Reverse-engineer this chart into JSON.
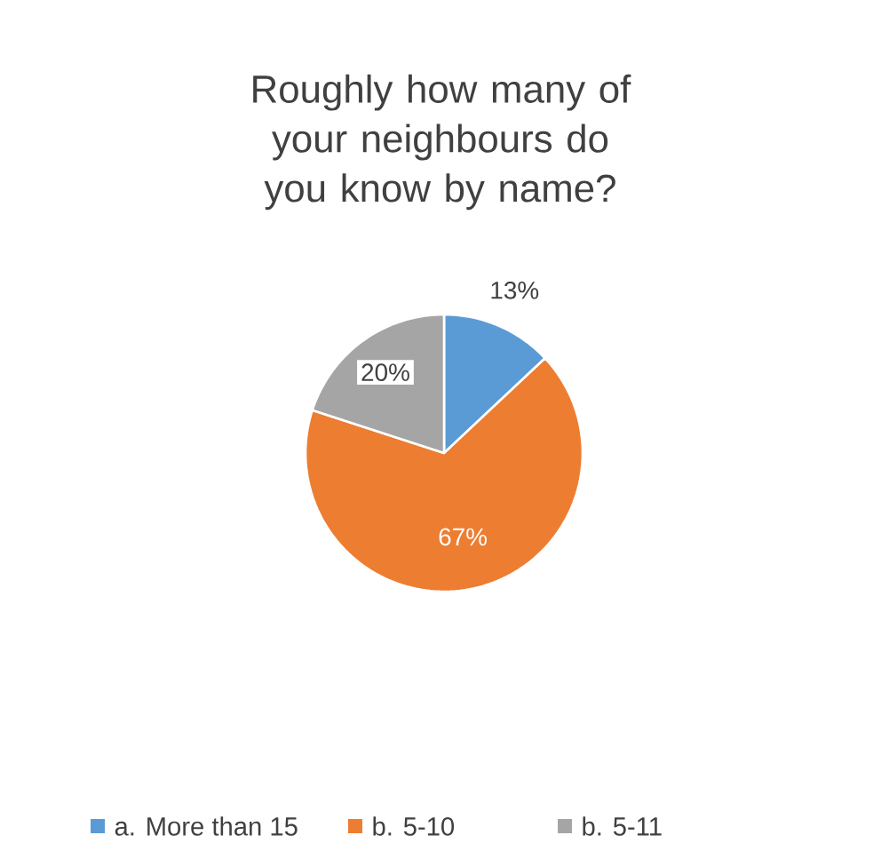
{
  "chart_data": {
    "type": "pie",
    "title": "Roughly how many of your neighbours do you know by name?",
    "categories": [
      "a. More than 15",
      "b. 5-10",
      "b. 5-11"
    ],
    "values": [
      13,
      67,
      20
    ],
    "value_labels": [
      "13%",
      "67%",
      "20%"
    ],
    "colors": [
      "#5b9bd5",
      "#ed7d31",
      "#a5a5a5"
    ],
    "legend": "bottom"
  }
}
